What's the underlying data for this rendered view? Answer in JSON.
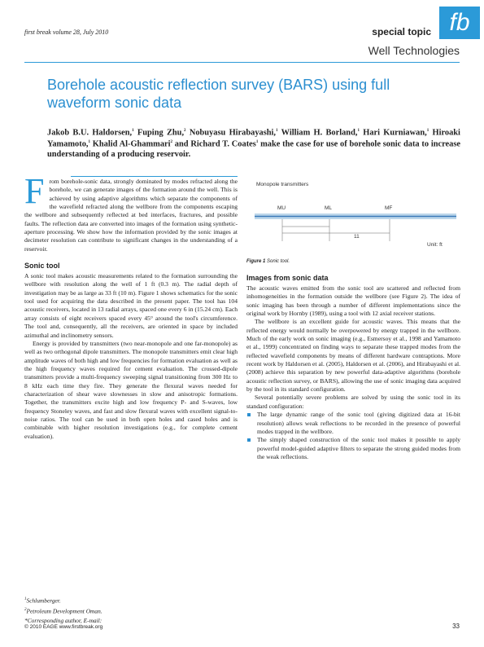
{
  "header": {
    "journal": "first break volume 28, July 2010",
    "section": "special topic",
    "logo": "fb",
    "subsection": "Well Technologies"
  },
  "title": "Borehole acoustic reflection survey (BARS) using full waveform sonic data",
  "authors": [
    {
      "name": "Jakob B.U. Haldorsen,",
      "sup": "1"
    },
    {
      "name": "Fuping Zhu,",
      "sup": "2"
    },
    {
      "name": "Nobuyasu Hirabayashi,",
      "sup": "1"
    },
    {
      "name": "William H. Borland,",
      "sup": "1"
    },
    {
      "name": "Hari Kurniawan,",
      "sup": "1"
    },
    {
      "name": "Hiroaki Yamamoto,",
      "sup": "1"
    },
    {
      "name": "Khalid Al-Ghammari",
      "sup": "2"
    },
    {
      "name": "and Richard T. Coates",
      "sup": "1"
    }
  ],
  "summary": "make the case for use of borehole sonic data to increase understanding of a producing reservoir.",
  "intro": {
    "drop_cap": "F",
    "text": "rom borehole-sonic data, strongly dominated by modes refracted along the borehole, we can generate images of the formation around the well. This is achieved by using adaptive algorithms which separate the components of the wavefield refracted along the wellbore from the components escaping the wellbore and subsequently reflected at bed interfaces, fractures, and possible faults. The reflection data are converted into images of the formation using synthetic-aperture processing. We show how the information provided by the sonic images at decimeter resolution can contribute to significant changes in the understanding of a reservoir."
  },
  "sections": [
    {
      "heading": "Sonic tool",
      "paragraphs": [
        "A sonic tool makes acoustic measurements related to the formation surrounding the wellbore with resolution along the well of 1 ft (0.3 m). The radial depth of investigation may be as large as 33 ft (10 m). Figure 1 shows schematics for the sonic tool used for acquiring the data described in the present paper. The tool has 104 acoustic receivers, located in 13 radial arrays, spaced one every 6 in (15.24 cm). Each array consists of eight receivers spaced every 45° around the tool's circumference. The tool and, consequently, all the receivers, are oriented in space by included azimuthal and inclinometry sensors.",
        "Energy is provided by transmitters (two near-monopole and one far-monopole) as well as two orthogonal dipole transmitters. The monopole transmitters emit clear high amplitude waves of both high and low frequencies for formation evaluation as well as the high frequency waves required for cement evaluation. The crossed-dipole transmitters provide a multi-frequency sweeping signal transitioning from 300 Hz to 8 kHz each time they fire. They generate the flexural waves needed for characterization of shear wave slownesses in slow and anisotropic formations. Together, the transmitters excite high and low frequency P- and S-waves, low frequency Stoneley waves, and fast and slow flexural waves with excellent signal-to-noise ratios. The tool can be used in both open holes and cased holes and is combinable with higher resolution investigations (e.g., for complete cement evaluation)."
      ]
    },
    {
      "heading": "Images from sonic data",
      "paragraphs": [
        "The acoustic waves emitted from the sonic tool are scattered and reflected from inhomogeneities in the formation outside the wellbore (see Figure 2). The idea of sonic imaging has been through a number of different implementations since the original work by Hornby (1989), using a tool with 12 axial receiver stations.",
        "The wellbore is an excellent guide for acoustic waves. This means that the reflected energy would normally be overpowered by energy trapped in the wellbore. Much of the early work on sonic imaging (e.g., Esmersoy et al., 1998 and Yamamoto et al., 1999) concentrated on finding ways to separate these trapped modes from the reflected wavefield components by means of different hardware contraptions. More recent work by Haldorsen et al. (2005), Haldorsen et al. (2006), and Hirabayashi et al. (2008) achieve this separation by new powerful data-adaptive algorithms (borehole acoustic reflection survey, or BARS), allowing the use of sonic imaging data acquired by the tool in its standard configuration.",
        "Several potentially severe problems are solved by using the sonic tool in its standard configuration:"
      ],
      "bullets": [
        "The large dynamic range of the sonic tool (giving digitized data at 16-bit resolution) allows weak reflections to be recorded in the presence of powerful modes trapped in the wellbore.",
        "The simply shaped construction of the sonic tool makes it possible to apply powerful model-guided adaptive filters to separate the strong guided modes from the weak reflections."
      ]
    }
  ],
  "figure": {
    "labels": [
      "Monopole transmitters",
      "MU",
      "ML",
      "MF",
      "11",
      "Unit: ft"
    ],
    "caption_label": "Figure 1",
    "caption": "Sonic tool."
  },
  "footnotes": [
    {
      "sup": "1",
      "text": "Schlumberger."
    },
    {
      "sup": "2",
      "text": "Petroleum Development Oman."
    },
    {
      "text": "*Corresponding author, E-mail:"
    }
  ],
  "footer": {
    "copyright": "© 2010 EAGE www.firstbreak.org",
    "page": "33"
  }
}
